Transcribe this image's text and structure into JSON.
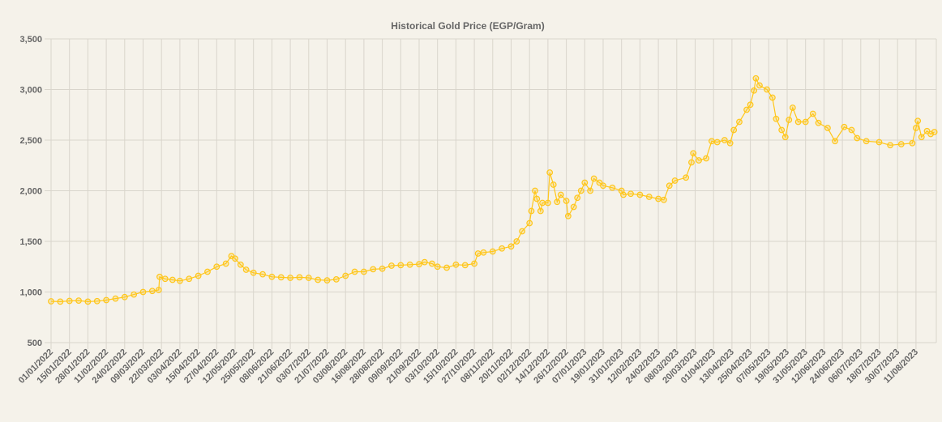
{
  "chart_data": {
    "type": "line",
    "title": "Historical Gold Price (EGP/Gram)",
    "xlabel": "",
    "ylabel": "",
    "ylim": [
      500,
      3500
    ],
    "yticks": [
      500,
      1000,
      1500,
      2000,
      2500,
      3000,
      3500
    ],
    "ytick_labels": [
      "500",
      "1,000",
      "1,500",
      "2,000",
      "2,500",
      "3,000",
      "3,500"
    ],
    "grid": true,
    "legend": "none",
    "colors": {
      "line": "#ffc61a",
      "grid": "#d9d5cc",
      "text": "#666666",
      "background": "#f5f2ea"
    },
    "categories": [
      "01/01/2022",
      "15/01/2022",
      "28/01/2022",
      "11/02/2022",
      "24/02/2022",
      "09/03/2022",
      "22/03/2022",
      "03/04/2022",
      "15/04/2022",
      "27/04/2022",
      "12/05/2022",
      "25/05/2022",
      "08/06/2022",
      "21/06/2022",
      "03/07/2022",
      "21/07/2022",
      "03/08/2022",
      "16/08/2022",
      "28/08/2022",
      "09/09/2022",
      "21/09/2022",
      "03/10/2022",
      "15/10/2022",
      "27/10/2022",
      "08/11/2022",
      "20/11/2022",
      "02/12/2022",
      "14/12/2022",
      "26/12/2022",
      "07/01/2023",
      "19/01/2023",
      "31/01/2023",
      "12/02/2023",
      "24/02/2023",
      "08/03/2023",
      "20/03/2023",
      "01/04/2023",
      "13/04/2023",
      "25/04/2023",
      "07/05/2023",
      "19/05/2023",
      "31/05/2023",
      "12/06/2023",
      "24/06/2023",
      "06/07/2023",
      "18/07/2023",
      "30/07/2023",
      "11/08/2023"
    ],
    "series": [
      {
        "name": "Gold Price (EGP/Gram)",
        "points": [
          [
            0,
            908
          ],
          [
            0.5,
            905
          ],
          [
            1,
            912
          ],
          [
            1.5,
            915
          ],
          [
            2,
            905
          ],
          [
            2.5,
            910
          ],
          [
            3,
            920
          ],
          [
            3.5,
            935
          ],
          [
            4,
            950
          ],
          [
            4.5,
            975
          ],
          [
            5,
            1000
          ],
          [
            5.5,
            1010
          ],
          [
            5.85,
            1020
          ],
          [
            5.9,
            1150
          ],
          [
            6.2,
            1130
          ],
          [
            6.6,
            1120
          ],
          [
            7,
            1110
          ],
          [
            7.5,
            1130
          ],
          [
            8,
            1160
          ],
          [
            8.5,
            1200
          ],
          [
            9,
            1250
          ],
          [
            9.5,
            1280
          ],
          [
            9.8,
            1355
          ],
          [
            10,
            1330
          ],
          [
            10.3,
            1270
          ],
          [
            10.6,
            1220
          ],
          [
            11,
            1190
          ],
          [
            11.5,
            1175
          ],
          [
            12,
            1150
          ],
          [
            12.5,
            1145
          ],
          [
            13,
            1140
          ],
          [
            13.5,
            1145
          ],
          [
            14,
            1140
          ],
          [
            14.5,
            1120
          ],
          [
            15,
            1115
          ],
          [
            15.5,
            1125
          ],
          [
            16,
            1160
          ],
          [
            16.5,
            1200
          ],
          [
            17,
            1200
          ],
          [
            17.5,
            1225
          ],
          [
            18,
            1230
          ],
          [
            18.5,
            1260
          ],
          [
            19,
            1265
          ],
          [
            19.5,
            1270
          ],
          [
            20,
            1275
          ],
          [
            20.3,
            1295
          ],
          [
            20.7,
            1280
          ],
          [
            21,
            1250
          ],
          [
            21.5,
            1240
          ],
          [
            22,
            1270
          ],
          [
            22.5,
            1265
          ],
          [
            23,
            1280
          ],
          [
            23.2,
            1380
          ],
          [
            23.5,
            1390
          ],
          [
            24,
            1400
          ],
          [
            24.5,
            1430
          ],
          [
            25,
            1450
          ],
          [
            25.3,
            1500
          ],
          [
            25.6,
            1600
          ],
          [
            26,
            1680
          ],
          [
            26.1,
            1800
          ],
          [
            26.3,
            2000
          ],
          [
            26.4,
            1920
          ],
          [
            26.6,
            1800
          ],
          [
            26.7,
            1880
          ],
          [
            27,
            1880
          ],
          [
            27.1,
            2180
          ],
          [
            27.3,
            2060
          ],
          [
            27.5,
            1890
          ],
          [
            27.7,
            1960
          ],
          [
            28,
            1900
          ],
          [
            28.1,
            1750
          ],
          [
            28.4,
            1840
          ],
          [
            28.6,
            1930
          ],
          [
            28.8,
            2000
          ],
          [
            29,
            2080
          ],
          [
            29.3,
            2000
          ],
          [
            29.5,
            2120
          ],
          [
            29.8,
            2080
          ],
          [
            30,
            2050
          ],
          [
            30.5,
            2030
          ],
          [
            31,
            2000
          ],
          [
            31.1,
            1960
          ],
          [
            31.5,
            1970
          ],
          [
            32,
            1960
          ],
          [
            32.5,
            1940
          ],
          [
            33,
            1920
          ],
          [
            33.3,
            1910
          ],
          [
            33.6,
            2050
          ],
          [
            33.9,
            2100
          ],
          [
            34.5,
            2130
          ],
          [
            34.8,
            2280
          ],
          [
            34.9,
            2370
          ],
          [
            35.2,
            2300
          ],
          [
            35.6,
            2320
          ],
          [
            35.9,
            2490
          ],
          [
            36.2,
            2480
          ],
          [
            36.6,
            2500
          ],
          [
            36.9,
            2470
          ],
          [
            37.1,
            2600
          ],
          [
            37.4,
            2680
          ],
          [
            37.8,
            2800
          ],
          [
            38,
            2850
          ],
          [
            38.2,
            2990
          ],
          [
            38.3,
            3110
          ],
          [
            38.5,
            3040
          ],
          [
            38.9,
            3000
          ],
          [
            39.2,
            2920
          ],
          [
            39.4,
            2710
          ],
          [
            39.7,
            2600
          ],
          [
            39.9,
            2530
          ],
          [
            40.1,
            2700
          ],
          [
            40.3,
            2820
          ],
          [
            40.6,
            2680
          ],
          [
            41,
            2680
          ],
          [
            41.4,
            2760
          ],
          [
            41.7,
            2670
          ],
          [
            42.2,
            2620
          ],
          [
            42.6,
            2490
          ],
          [
            43.1,
            2630
          ],
          [
            43.5,
            2600
          ],
          [
            43.8,
            2520
          ],
          [
            44.3,
            2490
          ],
          [
            45,
            2480
          ],
          [
            45.6,
            2450
          ],
          [
            46.2,
            2460
          ],
          [
            46.8,
            2470
          ],
          [
            47,
            2620
          ],
          [
            47.1,
            2690
          ],
          [
            47.3,
            2530
          ],
          [
            47.6,
            2590
          ],
          [
            47.8,
            2560
          ],
          [
            48,
            2580
          ]
        ]
      }
    ]
  }
}
